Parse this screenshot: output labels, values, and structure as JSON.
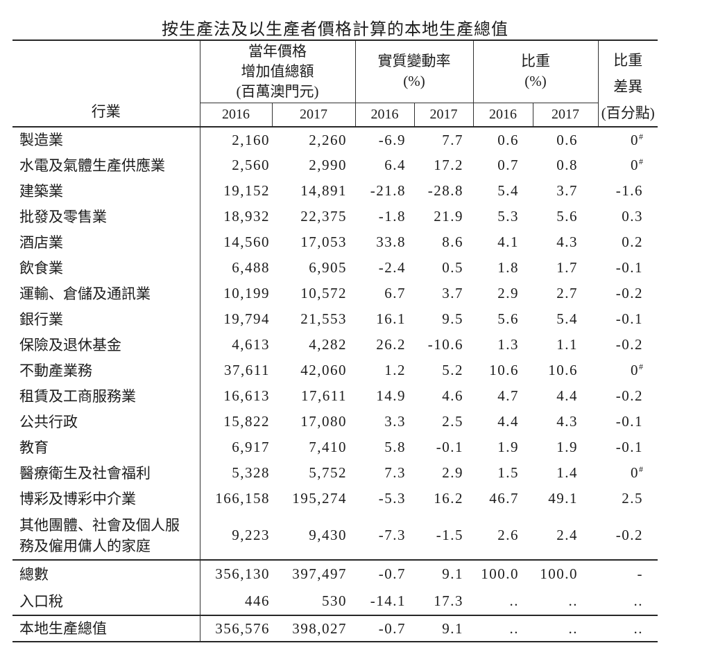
{
  "title": "按生產法及以生產者價格計算的本地生產總值",
  "table": {
    "industry_header": "行業",
    "groups": [
      {
        "label": "當年價格\n增加值總額\n(百萬澳門元)",
        "years": [
          "2016",
          "2017"
        ]
      },
      {
        "label": "實質變動率\n(%)",
        "years": [
          "2016",
          "2017"
        ]
      },
      {
        "label": "比重\n(%)",
        "years": [
          "2016",
          "2017"
        ]
      }
    ],
    "diff_header": "比重\n差異\n(百分點)",
    "rows": [
      [
        "製造業",
        "2,160",
        "2,260",
        "-6.9",
        "7.7",
        "0.6",
        "0.6",
        "0#"
      ],
      [
        "水電及氣體生產供應業",
        "2,560",
        "2,990",
        "6.4",
        "17.2",
        "0.7",
        "0.8",
        "0#"
      ],
      [
        "建築業",
        "19,152",
        "14,891",
        "-21.8",
        "-28.8",
        "5.4",
        "3.7",
        "-1.6"
      ],
      [
        "批發及零售業",
        "18,932",
        "22,375",
        "-1.8",
        "21.9",
        "5.3",
        "5.6",
        "0.3"
      ],
      [
        "酒店業",
        "14,560",
        "17,053",
        "33.8",
        "8.6",
        "4.1",
        "4.3",
        "0.2"
      ],
      [
        "飲食業",
        "6,488",
        "6,905",
        "-2.4",
        "0.5",
        "1.8",
        "1.7",
        "-0.1"
      ],
      [
        "運輸、倉儲及通訊業",
        "10,199",
        "10,572",
        "6.7",
        "3.7",
        "2.9",
        "2.7",
        "-0.2"
      ],
      [
        "銀行業",
        "19,794",
        "21,553",
        "16.1",
        "9.5",
        "5.6",
        "5.4",
        "-0.1"
      ],
      [
        "保險及退休基金",
        "4,613",
        "4,282",
        "26.2",
        "-10.6",
        "1.3",
        "1.1",
        "-0.2"
      ],
      [
        "不動產業務",
        "37,611",
        "42,060",
        "1.2",
        "5.2",
        "10.6",
        "10.6",
        "0#"
      ],
      [
        "租賃及工商服務業",
        "16,613",
        "17,611",
        "14.9",
        "4.6",
        "4.7",
        "4.4",
        "-0.2"
      ],
      [
        "公共行政",
        "15,822",
        "17,080",
        "3.3",
        "2.5",
        "4.4",
        "4.3",
        "-0.1"
      ],
      [
        "教育",
        "6,917",
        "7,410",
        "5.8",
        "-0.1",
        "1.9",
        "1.9",
        "-0.1"
      ],
      [
        "醫療衛生及社會福利",
        "5,328",
        "5,752",
        "7.3",
        "2.9",
        "1.5",
        "1.4",
        "0#"
      ],
      [
        "博彩及博彩中介業",
        "166,158",
        "195,274",
        "-5.3",
        "16.2",
        "46.7",
        "49.1",
        "2.5"
      ],
      [
        "其他團體、社會及個人服\n務及僱用傭人的家庭",
        "9,223",
        "9,430",
        "-7.3",
        "-1.5",
        "2.6",
        "2.4",
        "-0.2"
      ]
    ],
    "summary_rows": [
      [
        "總數",
        "356,130",
        "397,497",
        "-0.7",
        "9.1",
        "100.0",
        "100.0",
        "-"
      ],
      [
        "入口稅",
        "446",
        "530",
        "-14.1",
        "17.3",
        "..",
        "..",
        ".."
      ]
    ],
    "gdp_row": [
      "本地生產總值",
      "356,576",
      "398,027",
      "-0.7",
      "9.1",
      "..",
      "..",
      ".."
    ]
  }
}
